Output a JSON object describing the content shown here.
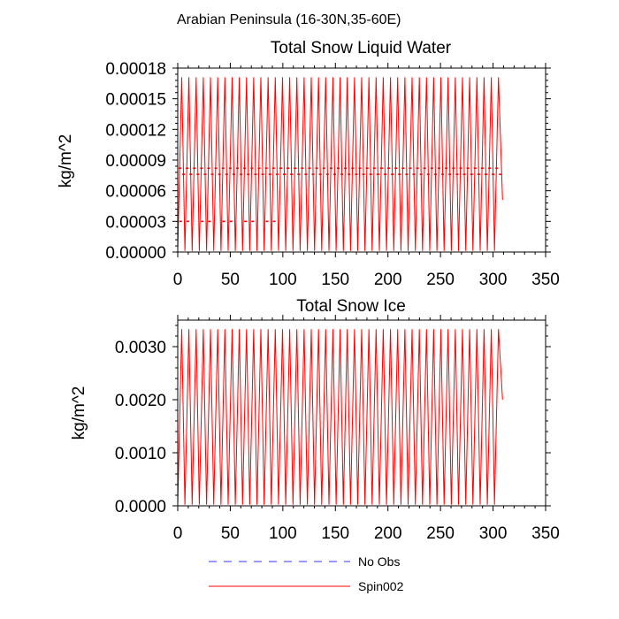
{
  "figure": {
    "suptitle": "Arabian Peninsula (16-30N,35-60E)"
  },
  "colors": {
    "spin002": "#ff0000",
    "no_obs": "#3333ff",
    "axis": "#000000"
  },
  "chart_data": [
    {
      "type": "line",
      "title": "Total Snow Liquid Water",
      "xlabel": "",
      "ylabel": "kg/m^2",
      "xlim": [
        0,
        350
      ],
      "ylim": [
        0,
        0.00018
      ],
      "xticks": [
        "0",
        "50",
        "100",
        "150",
        "200",
        "250",
        "300",
        "350"
      ],
      "yticks": [
        "0.00000",
        "0.00003",
        "0.00006",
        "0.00009",
        "0.00012",
        "0.00015",
        "0.00018"
      ],
      "series": [
        {
          "name": "No Obs",
          "values": []
        },
        {
          "name": "Spin002",
          "cycle_period": 6.85,
          "cycles": 45,
          "x_end": 309,
          "peak": 0.000171,
          "trough": 1e-06,
          "end_value": 5.1e-05,
          "mid_band_upper": 8.2e-05,
          "mid_band_lower": 7.6e-05,
          "early_mid_level": 3e-05,
          "early_mid_x_range": [
            0,
            92
          ]
        }
      ]
    },
    {
      "type": "line",
      "title": "Total Snow Ice",
      "xlabel": "",
      "ylabel": "kg/m^2",
      "xlim": [
        0,
        350
      ],
      "ylim": [
        0,
        0.0035
      ],
      "xticks": [
        "0",
        "50",
        "100",
        "150",
        "200",
        "250",
        "300",
        "350"
      ],
      "yticks": [
        "0.0000",
        "0.0010",
        "0.0020",
        "0.0030"
      ],
      "series": [
        {
          "name": "No Obs",
          "values": []
        },
        {
          "name": "Spin002",
          "cycle_period": 6.85,
          "cycles": 45,
          "x_end": 309,
          "peak": 0.00333,
          "trough": 2e-05,
          "end_value": 0.002
        }
      ]
    }
  ],
  "legend": {
    "placement": "bottom",
    "entries": [
      {
        "label": "No Obs",
        "style": "dashed"
      },
      {
        "label": "Spin002",
        "style": "solid"
      }
    ]
  }
}
